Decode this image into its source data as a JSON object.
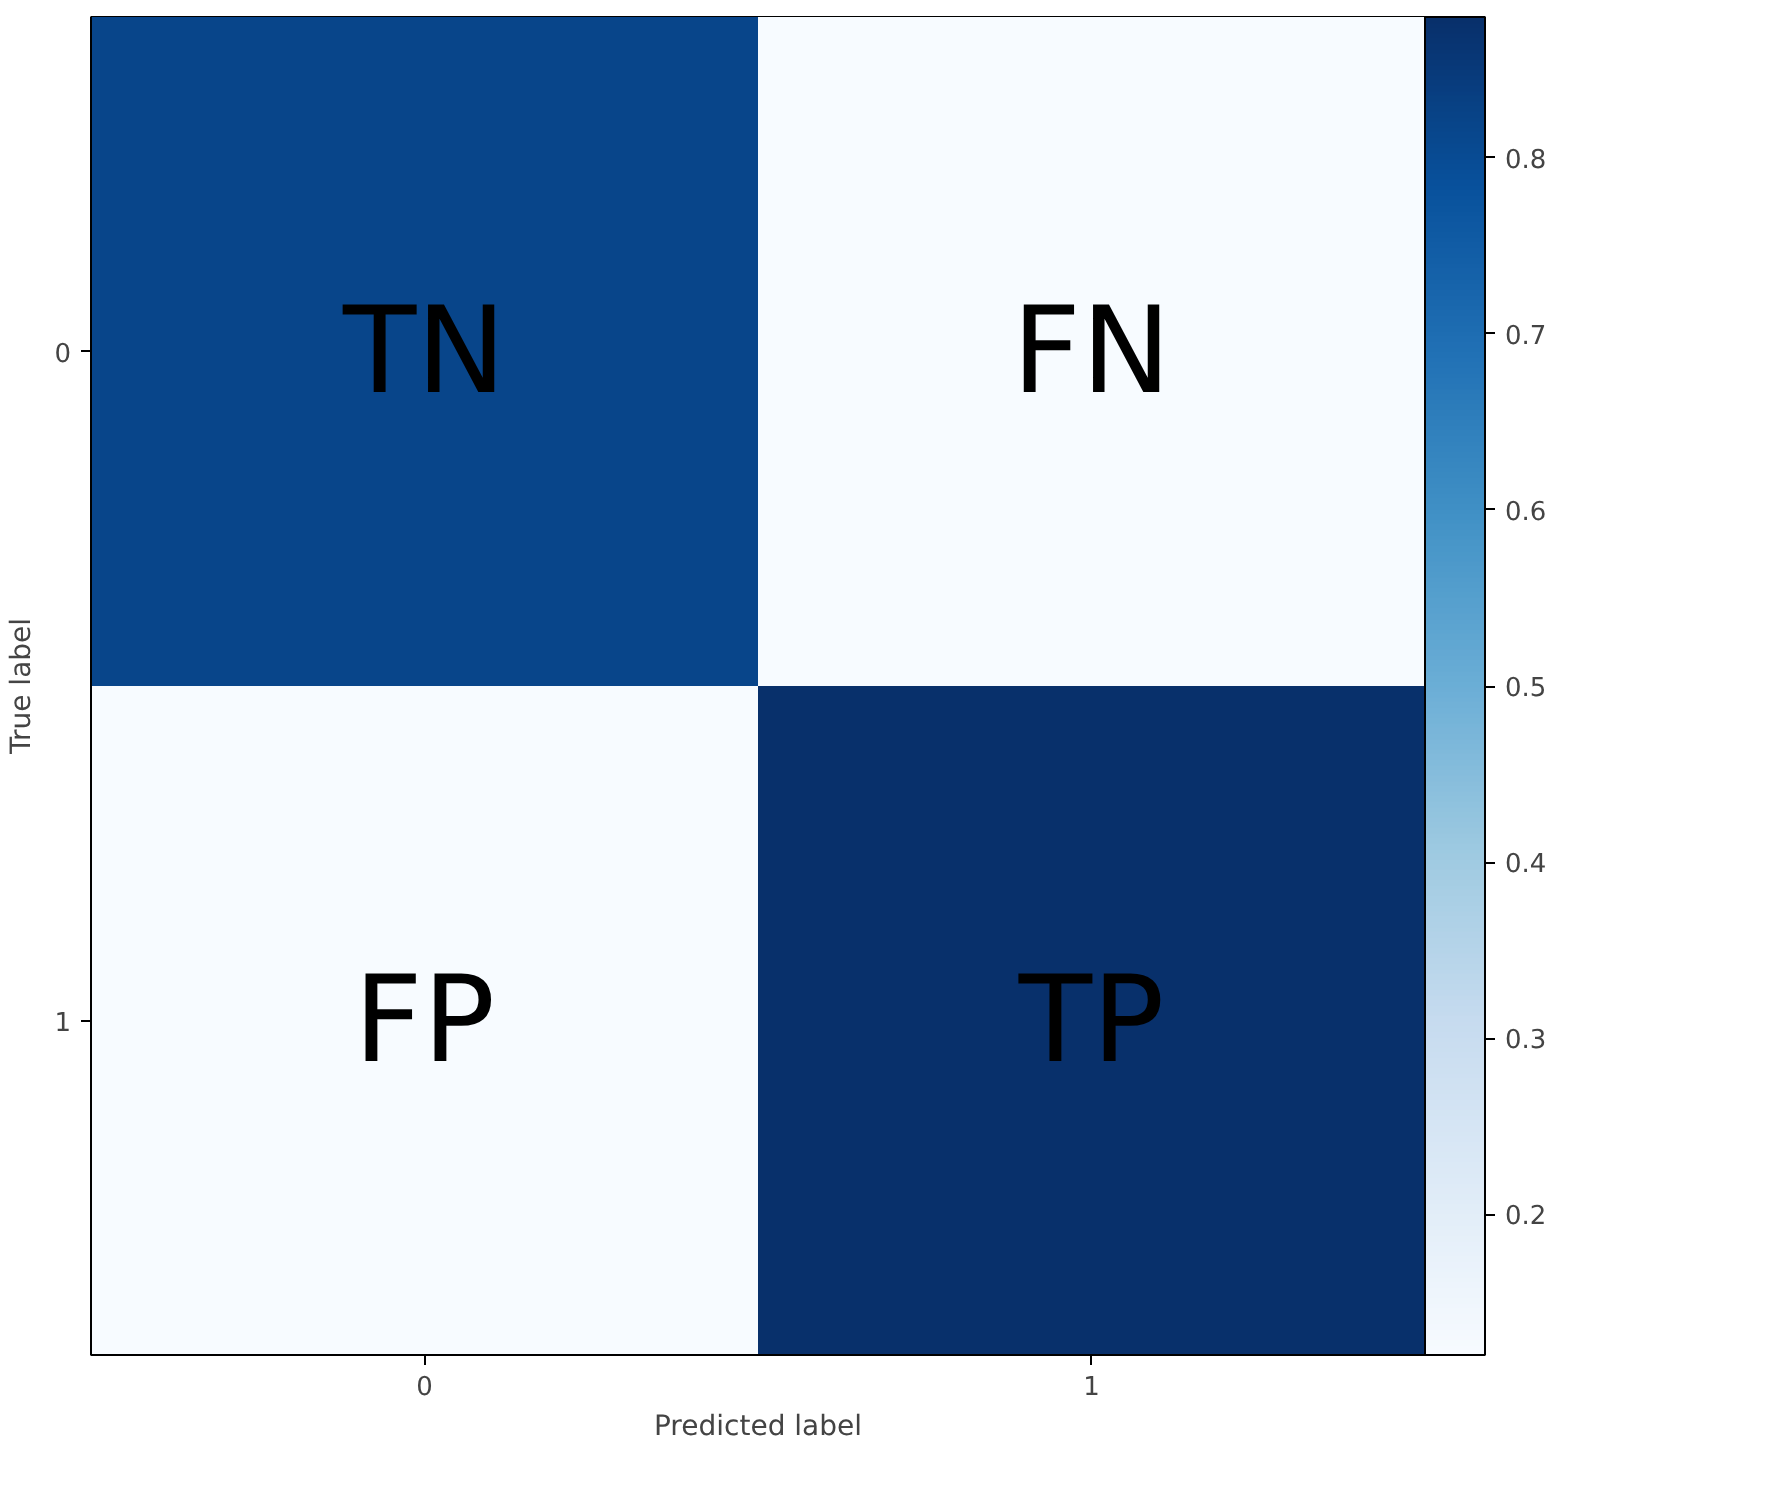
{
  "chart_data": {
    "type": "heatmap",
    "xlabel": "Predicted label",
    "ylabel": "True label",
    "categories": [
      "0",
      "1"
    ],
    "y_categories": [
      "0",
      "1"
    ],
    "cells": [
      [
        0.82,
        0.12
      ],
      [
        0.12,
        0.88
      ]
    ],
    "cell_labels": [
      [
        "TN",
        "FN"
      ],
      [
        "FP",
        "TP"
      ]
    ],
    "clim": [
      0.12,
      0.88
    ],
    "cticks": [
      0.2,
      0.3,
      0.4,
      0.5,
      0.6,
      0.7,
      0.8
    ]
  }
}
